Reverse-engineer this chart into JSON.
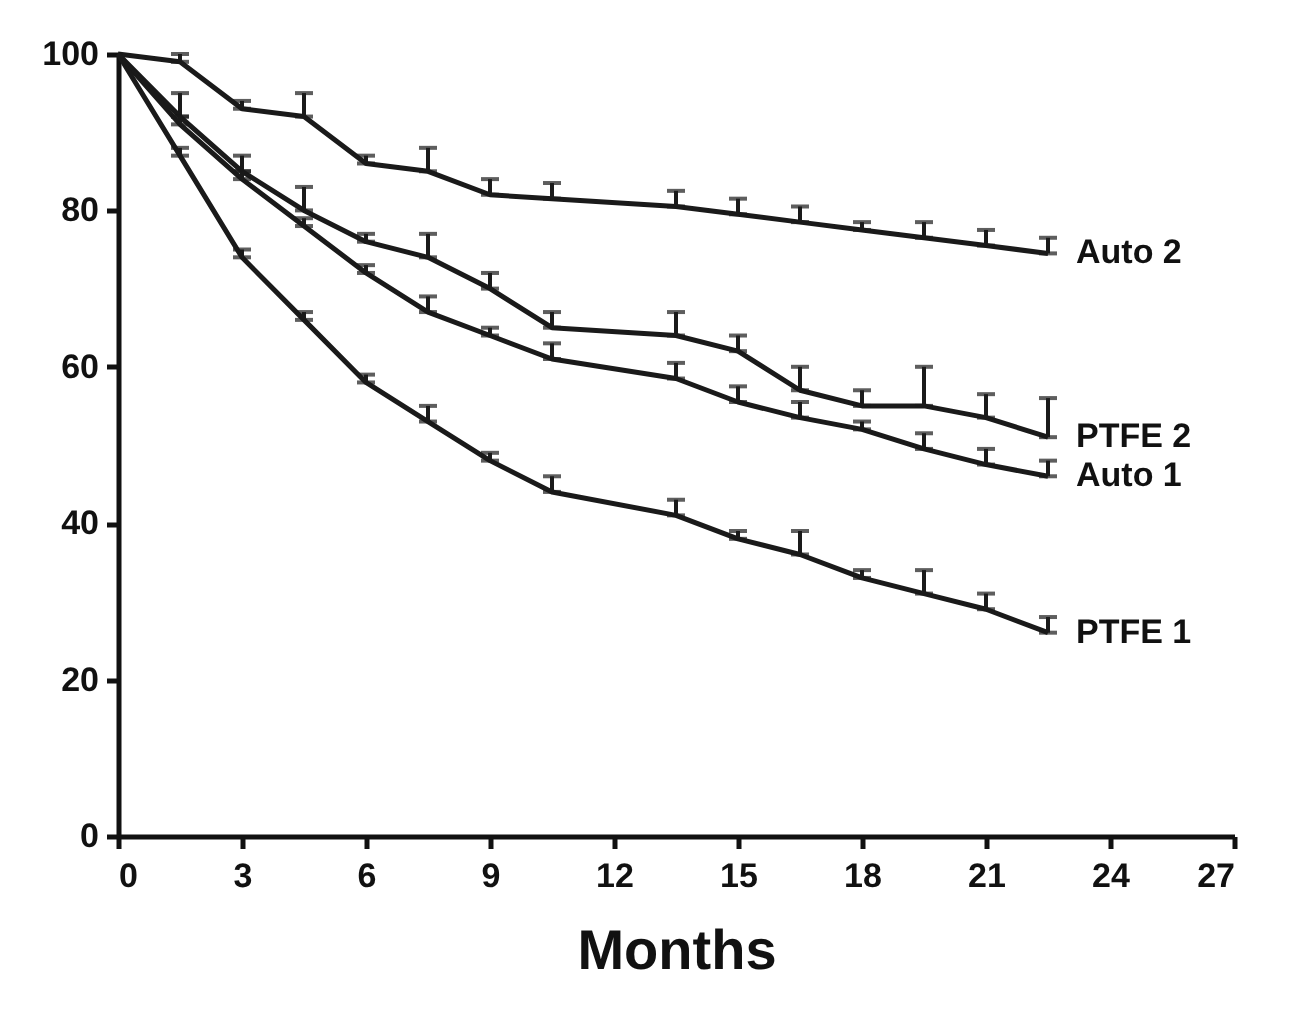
{
  "chart_data": {
    "type": "line",
    "xlabel": "Months",
    "xlim": [
      0,
      27
    ],
    "xticks": [
      0,
      3,
      6,
      9,
      12,
      15,
      18,
      21,
      24,
      27
    ],
    "ylim": [
      0,
      100
    ],
    "yticks": [
      0,
      20,
      40,
      60,
      80,
      100
    ],
    "line_style": "solid",
    "x": [
      0,
      1.5,
      3,
      4.5,
      6,
      7.5,
      9,
      10.5,
      13.5,
      15,
      16.5,
      18,
      19.5,
      21,
      22.5
    ],
    "series": [
      {
        "name": "Auto 2",
        "color": "#1a1a1a",
        "values": [
          100,
          99,
          93,
          92,
          86,
          85,
          82,
          81.5,
          80.5,
          79.5,
          78.5,
          77.5,
          76.5,
          75.5,
          74.5
        ],
        "errors": [
          null,
          [
            99,
            100
          ],
          [
            93,
            94
          ],
          [
            92,
            95
          ],
          [
            86,
            87
          ],
          [
            85,
            88
          ],
          [
            82,
            84
          ],
          [
            81.5,
            83.5
          ],
          [
            80.5,
            82.5
          ],
          [
            79.5,
            81.5
          ],
          [
            78.5,
            80.5
          ],
          [
            77.5,
            78.5
          ],
          [
            76.5,
            78.5
          ],
          [
            75.5,
            77.5
          ],
          [
            74.5,
            76.5
          ]
        ]
      },
      {
        "name": "PTFE 2",
        "color": "#1a1a1a",
        "values": [
          100,
          92,
          85,
          80,
          76,
          74,
          70,
          65,
          64,
          62,
          57,
          55,
          55,
          53.5,
          51
        ],
        "errors": [
          null,
          [
            92,
            95
          ],
          [
            85,
            87
          ],
          [
            80,
            83
          ],
          [
            76,
            77
          ],
          [
            74,
            77
          ],
          [
            70,
            72
          ],
          [
            65,
            67
          ],
          [
            64,
            67
          ],
          [
            62,
            64
          ],
          [
            57,
            60
          ],
          [
            55,
            57
          ],
          [
            55,
            60
          ],
          [
            53.5,
            56.5
          ],
          [
            51,
            56
          ]
        ]
      },
      {
        "name": "Auto 1",
        "color": "#1a1a1a",
        "values": [
          100,
          91,
          84,
          78,
          72,
          67,
          64,
          61,
          58.5,
          55.5,
          53.5,
          52,
          49.5,
          47.5,
          46
        ],
        "errors": [
          null,
          [
            91,
            92
          ],
          [
            84,
            85
          ],
          [
            78,
            79
          ],
          [
            72,
            73
          ],
          [
            67,
            69
          ],
          [
            64,
            65
          ],
          [
            61,
            63
          ],
          [
            58.5,
            60.5
          ],
          [
            55.5,
            57.5
          ],
          [
            53.5,
            55.5
          ],
          [
            52,
            53
          ],
          [
            49.5,
            51.5
          ],
          [
            47.5,
            49.5
          ],
          [
            46,
            48
          ]
        ]
      },
      {
        "name": "PTFE 1",
        "color": "#1a1a1a",
        "values": [
          100,
          87,
          74,
          66,
          58,
          53,
          48,
          44,
          41,
          38,
          36,
          33,
          31,
          29,
          26
        ],
        "errors": [
          null,
          [
            87,
            88
          ],
          [
            74,
            75
          ],
          [
            66,
            67
          ],
          [
            58,
            59
          ],
          [
            53,
            55
          ],
          [
            48,
            49
          ],
          [
            44,
            46
          ],
          [
            41,
            43
          ],
          [
            38,
            39
          ],
          [
            36,
            39
          ],
          [
            33,
            34
          ],
          [
            31,
            34
          ],
          [
            29,
            31
          ],
          [
            26,
            28
          ]
        ]
      }
    ]
  }
}
